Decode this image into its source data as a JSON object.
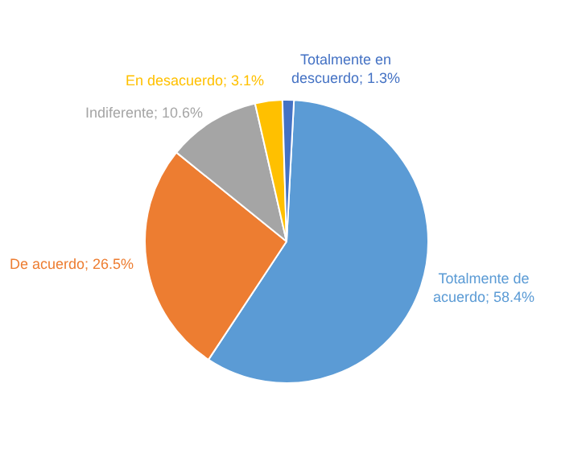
{
  "chart_data": {
    "type": "pie",
    "categories": [
      "Totalmente de acuerdo",
      "De acuerdo",
      "Indiferente",
      "En desacuerdo",
      "Totalmente en descuerdo"
    ],
    "values": [
      58.4,
      26.5,
      10.6,
      3.1,
      1.3
    ],
    "value_labels": [
      "58.4%",
      "26.5%",
      "10.6%",
      "3.1%",
      "1.3%"
    ],
    "colors": [
      "#5b9bd5",
      "#ed7d31",
      "#a5a5a5",
      "#ffc000",
      "#4472c4"
    ],
    "legend": false
  }
}
